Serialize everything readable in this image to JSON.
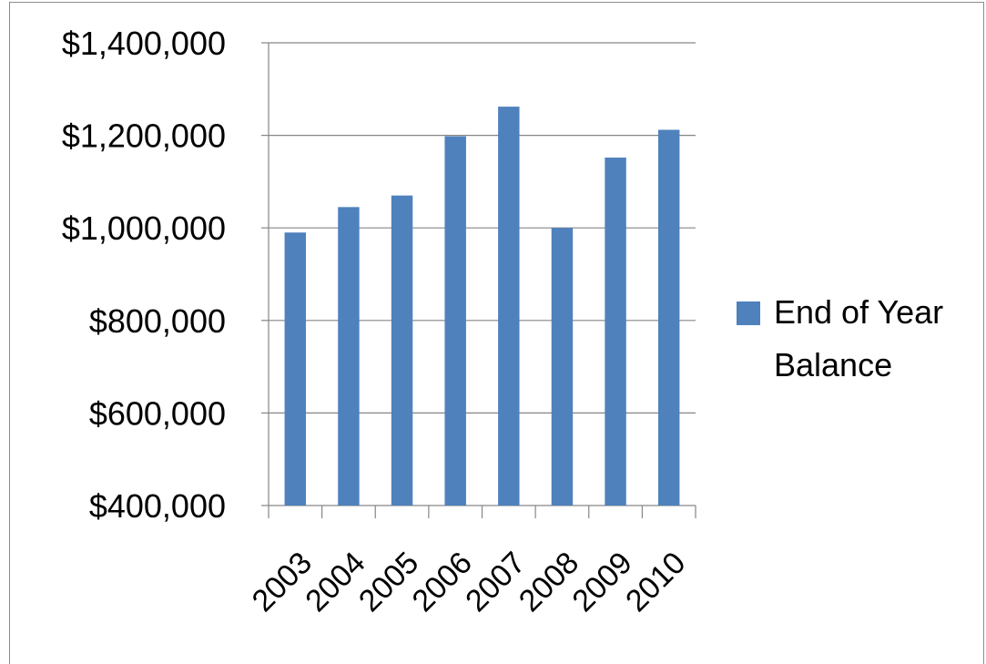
{
  "chart_data": {
    "type": "bar",
    "title": "",
    "xlabel": "",
    "ylabel": "",
    "categories": [
      "2003",
      "2004",
      "2005",
      "2006",
      "2007",
      "2008",
      "2009",
      "2010"
    ],
    "series": [
      {
        "name": "End of Year Balance",
        "values": [
          990000,
          1045000,
          1070000,
          1198000,
          1262000,
          1000000,
          1152000,
          1212000
        ],
        "color": "#4f81bd"
      }
    ],
    "ylim": [
      400000,
      1400000
    ],
    "yticks": [
      400000,
      600000,
      800000,
      1000000,
      1200000,
      1400000
    ],
    "ytick_labels": [
      "$400,000",
      "$600,000",
      "$800,000",
      "$1,000,000",
      "$1,200,000",
      "$1,400,000"
    ],
    "grid": true,
    "legend_position": "right",
    "legend_lines": [
      "End of Year",
      "Balance"
    ]
  }
}
